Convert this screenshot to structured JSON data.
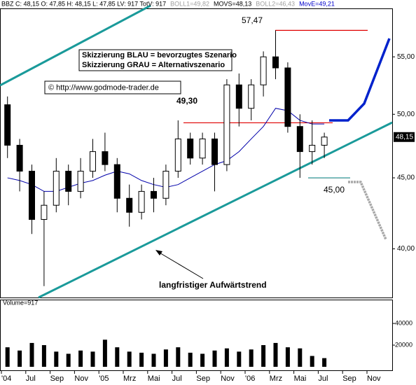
{
  "chart_data": {
    "type": "candlestick",
    "header": [
      {
        "text": "BBZ C: 48,15 O: 47,85 H: 48,15 L: 47,85 LV: 917 TotV: 917",
        "color": "#000000"
      },
      {
        "text": "BOLL1=49,82",
        "color": "#a0a0a0"
      },
      {
        "text": "MOVS=48,13",
        "color": "#000000"
      },
      {
        "text": "BOLL2=46,43",
        "color": "#a0a0a0"
      },
      {
        "text": "MovE=49,21",
        "color": "#0000cc"
      }
    ],
    "categories": [
      "'04",
      null,
      "Jul",
      null,
      "Sep",
      null,
      "Nov",
      null,
      "'05",
      null,
      "Mrz",
      null,
      "Mai",
      null,
      "Jul",
      null,
      "Sep",
      null,
      "Nov",
      null,
      "'06",
      null,
      "Mrz",
      null,
      "Mai",
      null,
      "Jul",
      null,
      "Sep",
      null,
      "Nov",
      null
    ],
    "open": [
      50.8,
      47.5,
      45.5,
      42,
      43,
      45.5,
      44,
      45.5,
      47,
      46,
      43.5,
      42.5,
      44,
      43.5,
      45.5,
      48,
      46.5,
      48,
      46,
      52.5,
      50.5,
      52.5,
      55,
      54,
      49,
      47,
      47.5,
      null,
      null,
      null,
      null,
      null
    ],
    "high": [
      51.5,
      48,
      46,
      44,
      46.5,
      46,
      46.5,
      48,
      48.5,
      46.5,
      44.5,
      44.5,
      45,
      46,
      49.5,
      48.5,
      48.5,
      48.5,
      53,
      53.5,
      53,
      55.5,
      57.47,
      54.5,
      50,
      49.5,
      48.5,
      null,
      null,
      null,
      null,
      null
    ],
    "low": [
      46.5,
      44,
      41,
      37.6,
      42.5,
      43,
      43.5,
      45,
      45.5,
      42.5,
      41.5,
      42,
      42.5,
      43,
      45,
      46,
      46,
      44,
      45.5,
      49,
      49.5,
      51.5,
      53,
      48.5,
      45,
      46,
      46.5,
      null,
      null,
      null,
      null,
      null
    ],
    "close": [
      47.5,
      45.5,
      42,
      43,
      45.5,
      44,
      45.5,
      47,
      46,
      43.5,
      42.5,
      44,
      43.5,
      45.5,
      48,
      46.5,
      48,
      46,
      52.5,
      50.5,
      52.5,
      55,
      54,
      49,
      47,
      47.5,
      48.15,
      null,
      null,
      null,
      null,
      null
    ],
    "ma": {
      "color": "#0000aa",
      "values": [
        45,
        44.8,
        44.5,
        44,
        44,
        44.3,
        44.6,
        44.8,
        45.2,
        45.5,
        45.3,
        44.8,
        44.5,
        44.3,
        44.5,
        45,
        45.5,
        46,
        46.3,
        47,
        48,
        49,
        50.5,
        50.3,
        49.5,
        49.2,
        49.2,
        null,
        null,
        null,
        null,
        null
      ]
    },
    "ylim": [
      36.9,
      59.6
    ],
    "log_scale": true,
    "yticks": [
      {
        "value": 40,
        "label": "40,00"
      },
      {
        "value": 45,
        "label": "45,00"
      },
      {
        "value": 50,
        "label": "50,00"
      },
      {
        "value": 55,
        "label": "55,00"
      }
    ],
    "last_price": {
      "value": 48.15,
      "label": "48,15"
    },
    "levels": [
      {
        "value": 57.47,
        "label": "57,47"
      },
      {
        "value": 49.3,
        "label": "49,30"
      },
      {
        "value": 45,
        "label": "45,00"
      }
    ],
    "level_color": "#e00000",
    "notes": [
      "Skizzierung BLAU = bevorzugtes Szenario",
      "Skizzierung GRAU = Alternativszenario"
    ],
    "copyright": "© http://www.godmode-trader.de",
    "trend_label": "langfristiger Aufwärtstrend",
    "volume_label": "Volume=917",
    "volume": [
      18000,
      15000,
      22000,
      20000,
      14000,
      12000,
      15000,
      14000,
      25000,
      18000,
      14000,
      13000,
      12000,
      16000,
      18000,
      13000,
      12000,
      15000,
      17000,
      14000,
      16000,
      20000,
      22000,
      18000,
      17000,
      10000,
      8000,
      null,
      null,
      null,
      null,
      null
    ],
    "volume_ylim": [
      0,
      62000
    ],
    "volume_yticks": [
      20000,
      40000
    ]
  }
}
